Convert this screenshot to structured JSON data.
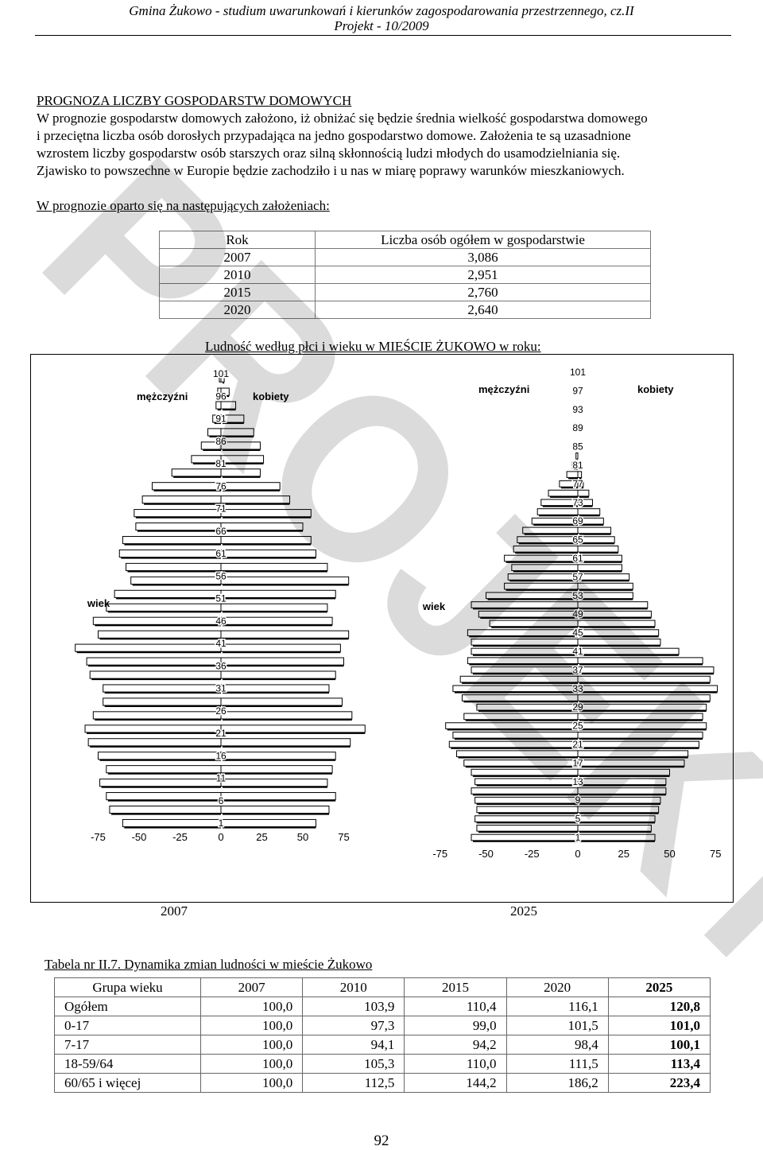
{
  "header": {
    "line1": "Gmina Żukowo - studium uwarunkowań i kierunków zagospodarowania przestrzennego, cz.II",
    "line2": "Projekt - 10/2009"
  },
  "watermark": "PROJEKT",
  "section": {
    "heading": "PROGNOZA LICZBY GOSPODARSTW DOMOWYCH",
    "para_lines": [
      "W prognozie gospodarstw domowych założono, iż obniżać się będzie średnia wielkość gospodarstwa domowego",
      "i przeciętna liczba osób dorosłych przypadająca na jedno gospodarstwo domowe. Założenia te są uzasadnione",
      "wzrostem liczby gospodarstw osób starszych oraz silną skłonnością ludzi młodych do usamodzielniania się.",
      "Zjawisko to powszechne w Europie będzie zachodziło i u nas w miarę poprawy warunków mieszkaniowych."
    ],
    "assumptions": "W prognozie oparto się na następujących założeniach:"
  },
  "forecast_table": {
    "col_year": "Rok",
    "col_value": "Liczba osób ogółem w gospodarstwie",
    "rows": [
      {
        "year": "2007",
        "value": "3,086"
      },
      {
        "year": "2010",
        "value": "2,951"
      },
      {
        "year": "2015",
        "value": "2,760"
      },
      {
        "year": "2020",
        "value": "2,640"
      }
    ]
  },
  "chart_title": "Ludność według płci i wieku w MIEŚCIE ŻUKOWO w roku:",
  "chart_data": [
    {
      "type": "bar",
      "orientation": "horizontal-pyramid",
      "year_label": "2007",
      "men_label": "mężczyźni",
      "women_label": "kobiety",
      "axis_label": "wiek",
      "x_ticks": [
        "-75",
        "-50",
        "-25",
        "0",
        "25",
        "50",
        "75"
      ],
      "xlim": [
        -75,
        75
      ],
      "age_ticks": [
        "101",
        "96",
        "91",
        "86",
        "81",
        "76",
        "71",
        "66",
        "61",
        "56",
        "51",
        "46",
        "41",
        "36",
        "31",
        "26",
        "21",
        "16",
        "11",
        "6",
        "1"
      ],
      "age_range": [
        1,
        101
      ],
      "men_by_age_band": [
        -60,
        -68,
        -70,
        -74,
        -70,
        -75,
        -81,
        -83,
        -78,
        -72,
        -72,
        -80,
        -82,
        -89,
        -75,
        -78,
        -70,
        -65,
        -55,
        -58,
        -62,
        -60,
        -52,
        -53,
        -48,
        -42,
        -30,
        -18,
        -12,
        -8,
        -5,
        -3,
        -2,
        -1
      ],
      "women_by_age_band": [
        58,
        66,
        70,
        65,
        68,
        70,
        79,
        88,
        80,
        74,
        66,
        70,
        75,
        73,
        78,
        68,
        65,
        70,
        78,
        65,
        58,
        55,
        50,
        55,
        42,
        36,
        24,
        26,
        24,
        20,
        14,
        9,
        5,
        2
      ],
      "band_note_ages": [
        1,
        4,
        7,
        10,
        13,
        16,
        19,
        22,
        25,
        28,
        31,
        34,
        37,
        40,
        43,
        46,
        49,
        52,
        55,
        58,
        61,
        64,
        67,
        70,
        73,
        76,
        79,
        82,
        85,
        88,
        91,
        94,
        97,
        100
      ]
    },
    {
      "type": "bar",
      "orientation": "horizontal-pyramid",
      "year_label": "2025",
      "men_label": "mężczyźni",
      "women_label": "kobiety",
      "axis_label": "wiek",
      "x_ticks": [
        "-75",
        "-50",
        "-25",
        "0",
        "25",
        "50",
        "75"
      ],
      "xlim": [
        -75,
        75
      ],
      "age_ticks": [
        "101",
        "97",
        "93",
        "89",
        "85",
        "81",
        "77",
        "73",
        "69",
        "65",
        "61",
        "57",
        "53",
        "49",
        "45",
        "41",
        "37",
        "33",
        "29",
        "25",
        "21",
        "17",
        "13",
        "9",
        "5",
        "1"
      ],
      "age_range": [
        1,
        101
      ],
      "men_by_age_band": [
        -58,
        -55,
        -56,
        -55,
        -56,
        -58,
        -56,
        -58,
        -62,
        -66,
        -70,
        -68,
        -72,
        -62,
        -55,
        -63,
        -68,
        -64,
        -58,
        -60,
        -58,
        -58,
        -60,
        -48,
        -54,
        -58,
        -50,
        -40,
        -38,
        -36,
        -40,
        -35,
        -33,
        -30,
        -25,
        -22,
        -20,
        -16,
        -10,
        -6,
        -3,
        -1
      ],
      "women_by_age_band": [
        42,
        40,
        42,
        44,
        45,
        48,
        48,
        50,
        58,
        60,
        66,
        68,
        70,
        68,
        70,
        72,
        76,
        72,
        74,
        68,
        55,
        45,
        44,
        42,
        40,
        38,
        30,
        30,
        28,
        24,
        24,
        22,
        20,
        18,
        14,
        12,
        8,
        6,
        3,
        2,
        1,
        0
      ],
      "band_note_ages": [
        1,
        3,
        5,
        7,
        9,
        11,
        13,
        15,
        17,
        19,
        21,
        23,
        25,
        27,
        29,
        31,
        33,
        35,
        37,
        39,
        41,
        43,
        45,
        47,
        49,
        51,
        53,
        55,
        57,
        59,
        61,
        63,
        65,
        67,
        69,
        71,
        73,
        75,
        77,
        79,
        81,
        83
      ]
    }
  ],
  "dynamics": {
    "caption": "Tabela nr II.7. Dynamika zmian ludności w mieście Żukowo",
    "headers": [
      "Grupa wieku",
      "2007",
      "2010",
      "2015",
      "2020",
      "2025"
    ],
    "rows": [
      [
        "Ogółem",
        "100,0",
        "103,9",
        "110,4",
        "116,1",
        "120,8"
      ],
      [
        "0-17",
        "100,0",
        "97,3",
        "99,0",
        "101,5",
        "101,0"
      ],
      [
        "7-17",
        "100,0",
        "94,1",
        "94,2",
        "98,4",
        "100,1"
      ],
      [
        "18-59/64",
        "100,0",
        "105,3",
        "110,0",
        "111,5",
        "113,4"
      ],
      [
        "60/65 i więcej",
        "100,0",
        "112,5",
        "144,2",
        "186,2",
        "223,4"
      ]
    ]
  },
  "page_number": "92"
}
